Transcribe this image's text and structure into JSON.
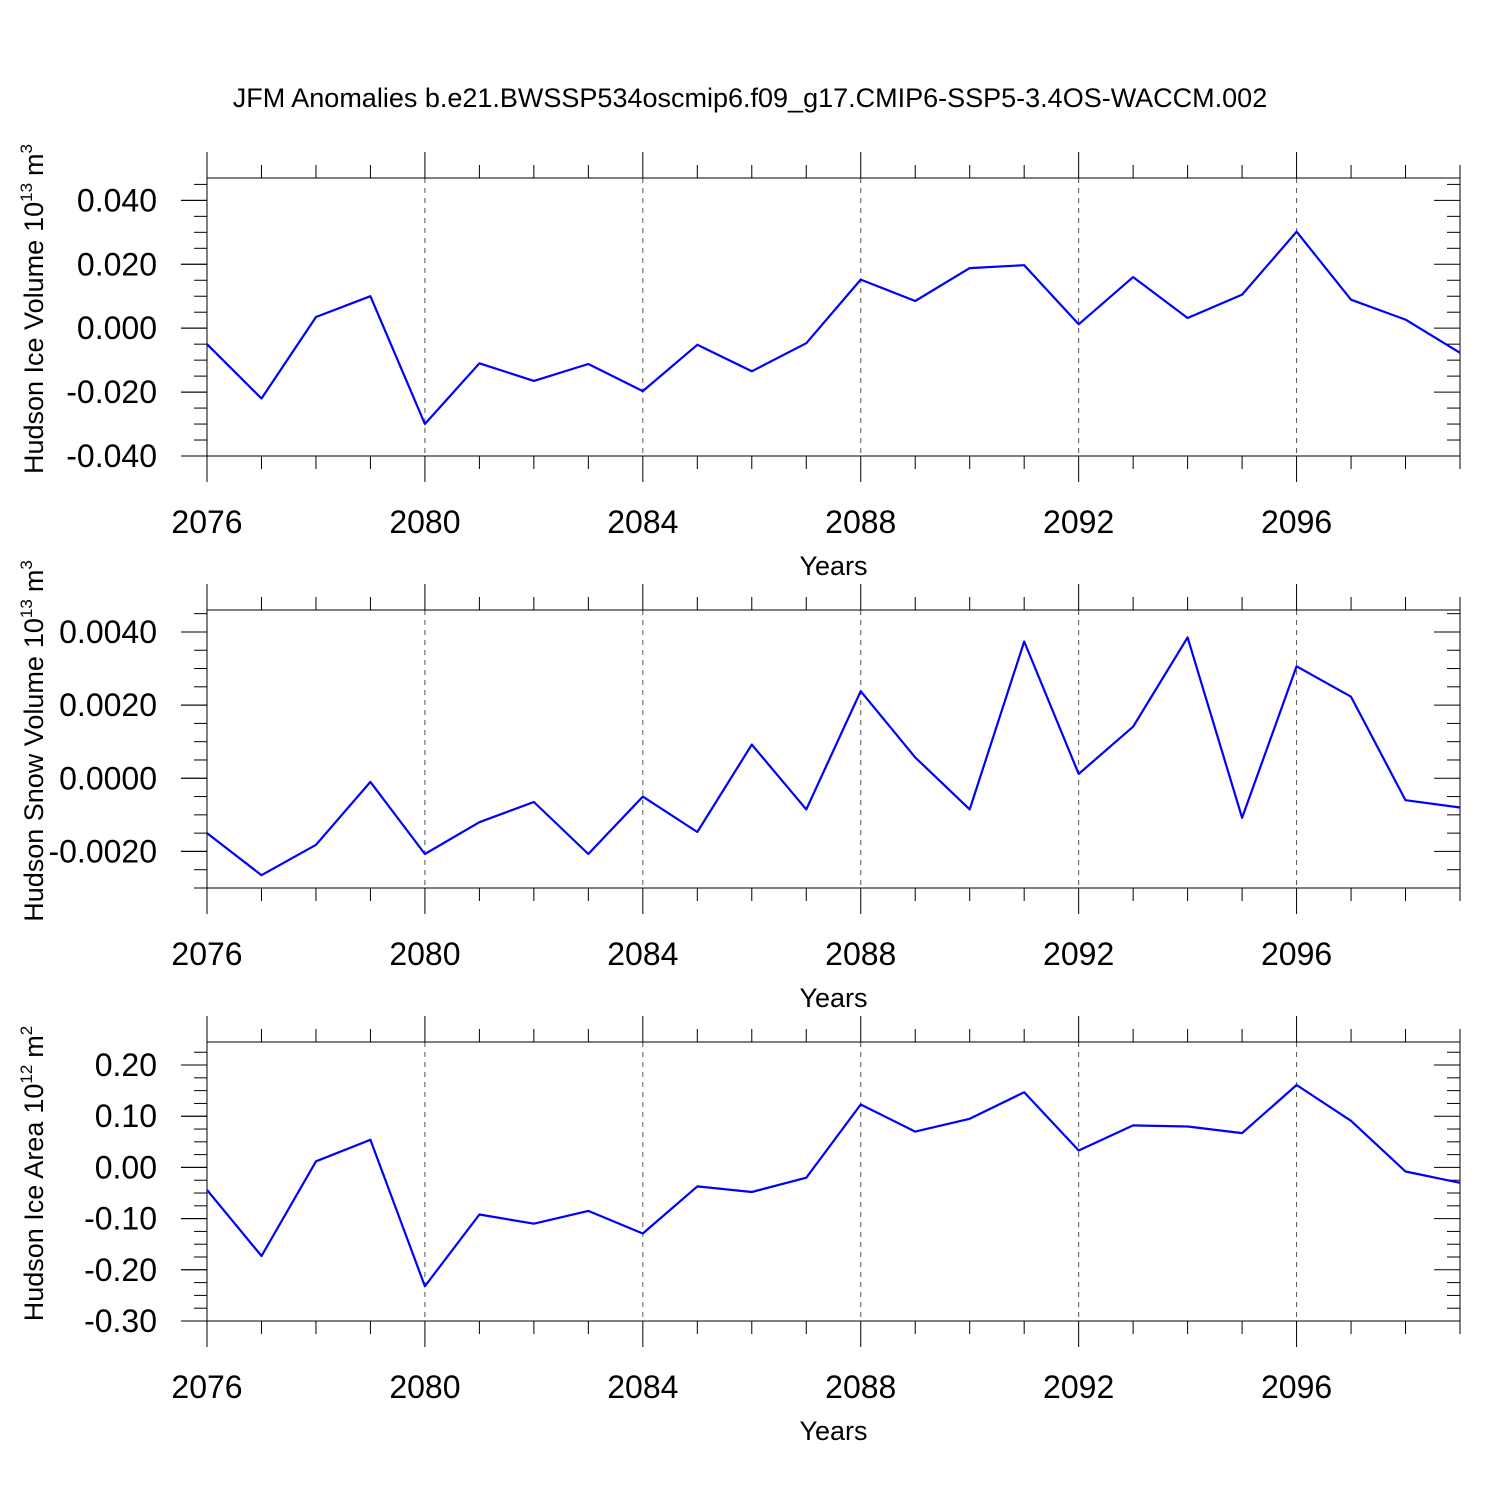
{
  "chart_data": {
    "type": "line",
    "title": "JFM Anomalies b.e21.BWSSP534oscmip6.f09_g17.CMIP6-SSP5-3.4OS-WACCM.002",
    "panels": [
      {
        "id": "ice-volume",
        "ylabel": "Hudson Ice Volume",
        "ylabel_unit_base": "10",
        "ylabel_unit_exp": "13",
        "ylabel_unit_symbol": "m",
        "ylabel_unit_sym_exp": "3",
        "xlabel": "Years",
        "xlim": [
          2076,
          2099
        ],
        "ylim": [
          -0.04,
          0.047
        ],
        "x_ticks": [
          2076,
          2080,
          2084,
          2088,
          2092,
          2096
        ],
        "x_tick_labels": [
          "2076",
          "2080",
          "2084",
          "2088",
          "2092",
          "2096"
        ],
        "y_ticks": [
          -0.04,
          -0.02,
          0.0,
          0.02,
          0.04
        ],
        "y_tick_labels": [
          "-0.040",
          "-0.020",
          "0.000",
          "0.020",
          "0.040"
        ],
        "grid_x": [
          2080,
          2084,
          2088,
          2092,
          2096
        ],
        "series": [
          {
            "name": "Hudson Ice Volume",
            "color": "#0000ff",
            "x": [
              2076,
              2077,
              2078,
              2079,
              2080,
              2081,
              2082,
              2083,
              2084,
              2085,
              2086,
              2087,
              2088,
              2089,
              2090,
              2091,
              2092,
              2093,
              2094,
              2095,
              2096,
              2097,
              2098,
              2099
            ],
            "values": [
              -0.005,
              -0.022,
              0.0035,
              0.01,
              -0.03,
              -0.011,
              -0.0165,
              -0.0112,
              -0.0197,
              -0.0052,
              -0.0135,
              -0.0047,
              0.0152,
              0.0085,
              0.0188,
              0.0197,
              0.0012,
              0.016,
              0.0032,
              0.0105,
              0.0302,
              0.0089,
              0.0027,
              -0.0077
            ]
          }
        ]
      },
      {
        "id": "snow-volume",
        "ylabel": "Hudson Snow Volume",
        "ylabel_unit_base": "10",
        "ylabel_unit_exp": "13",
        "ylabel_unit_symbol": "m",
        "ylabel_unit_sym_exp": "3",
        "xlabel": "Years",
        "xlim": [
          2076,
          2099
        ],
        "ylim": [
          -0.003,
          0.0046
        ],
        "x_ticks": [
          2076,
          2080,
          2084,
          2088,
          2092,
          2096
        ],
        "x_tick_labels": [
          "2076",
          "2080",
          "2084",
          "2088",
          "2092",
          "2096"
        ],
        "y_ticks": [
          -0.002,
          0.0,
          0.002,
          0.004
        ],
        "y_tick_labels": [
          "-0.0020",
          "0.0000",
          "0.0020",
          "0.0040"
        ],
        "grid_x": [
          2080,
          2084,
          2088,
          2092,
          2096
        ],
        "series": [
          {
            "name": "Hudson Snow Volume",
            "color": "#0000ff",
            "x": [
              2076,
              2077,
              2078,
              2079,
              2080,
              2081,
              2082,
              2083,
              2084,
              2085,
              2086,
              2087,
              2088,
              2089,
              2090,
              2091,
              2092,
              2093,
              2094,
              2095,
              2096,
              2097,
              2098,
              2099
            ],
            "values": [
              -0.0015,
              -0.00265,
              -0.00182,
              -0.0001,
              -0.00207,
              -0.0012,
              -0.00065,
              -0.00207,
              -0.0005,
              -0.00147,
              0.00092,
              -0.00085,
              0.00238,
              0.00057,
              -0.00085,
              0.00374,
              0.00012,
              0.00141,
              0.00385,
              -0.00108,
              0.00306,
              0.00223,
              -0.0006,
              -0.0008
            ]
          }
        ]
      },
      {
        "id": "ice-area",
        "ylabel": "Hudson Ice Area",
        "ylabel_unit_base": "10",
        "ylabel_unit_exp": "12",
        "ylabel_unit_symbol": "m",
        "ylabel_unit_sym_exp": "2",
        "xlabel": "Years",
        "xlim": [
          2076,
          2099
        ],
        "ylim": [
          -0.3,
          0.245
        ],
        "x_ticks": [
          2076,
          2080,
          2084,
          2088,
          2092,
          2096
        ],
        "x_tick_labels": [
          "2076",
          "2080",
          "2084",
          "2088",
          "2092",
          "2096"
        ],
        "y_ticks": [
          -0.3,
          -0.2,
          -0.1,
          0.0,
          0.1,
          0.2
        ],
        "y_tick_labels": [
          "-0.30",
          "-0.20",
          "-0.10",
          "0.00",
          "0.10",
          "0.20"
        ],
        "grid_x": [
          2080,
          2084,
          2088,
          2092,
          2096
        ],
        "series": [
          {
            "name": "Hudson Ice Area",
            "color": "#0000ff",
            "x": [
              2076,
              2077,
              2078,
              2079,
              2080,
              2081,
              2082,
              2083,
              2084,
              2085,
              2086,
              2087,
              2088,
              2089,
              2090,
              2091,
              2092,
              2093,
              2094,
              2095,
              2096,
              2097,
              2098,
              2099
            ],
            "values": [
              -0.044,
              -0.173,
              0.012,
              0.054,
              -0.232,
              -0.092,
              -0.11,
              -0.085,
              -0.129,
              -0.037,
              -0.048,
              -0.02,
              0.123,
              0.07,
              0.095,
              0.147,
              0.033,
              0.082,
              0.08,
              0.067,
              0.161,
              0.091,
              -0.008,
              -0.03
            ]
          }
        ]
      }
    ]
  }
}
